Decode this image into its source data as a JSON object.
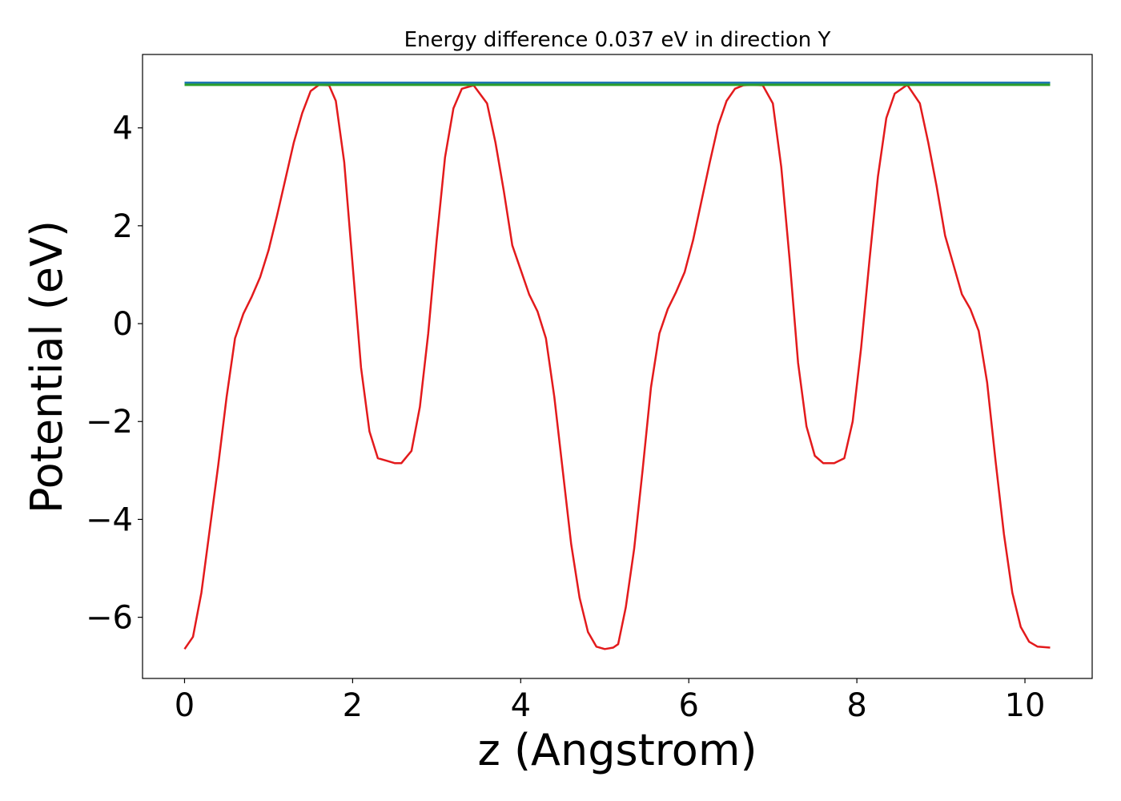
{
  "chart_data": {
    "type": "line",
    "title": "Energy difference 0.037 eV in direction Y",
    "xlabel": "z (Angstrom)",
    "ylabel": "Potential (eV)",
    "xlim": [
      -0.5,
      10.8
    ],
    "ylim": [
      -7.25,
      5.5
    ],
    "xticks": [
      0,
      2,
      4,
      6,
      8,
      10
    ],
    "xtick_labels": [
      "0",
      "2",
      "4",
      "6",
      "8",
      "10"
    ],
    "yticks": [
      4,
      2,
      0,
      -2,
      -4,
      -6
    ],
    "ytick_labels": [
      "4",
      "2",
      "0",
      "−2",
      "−4",
      "−6"
    ],
    "grid": false,
    "series": [
      {
        "color": "#e31a1c",
        "x": [
          0.0,
          0.1,
          0.2,
          0.3,
          0.4,
          0.5,
          0.6,
          0.7,
          0.8,
          0.9,
          1.0,
          1.1,
          1.2,
          1.3,
          1.4,
          1.5,
          1.6,
          1.72,
          1.8,
          1.9,
          2.0,
          2.1,
          2.2,
          2.3,
          2.4,
          2.5,
          2.58,
          2.7,
          2.8,
          2.9,
          3.0,
          3.1,
          3.2,
          3.3,
          3.44,
          3.6,
          3.7,
          3.8,
          3.9,
          4.0,
          4.1,
          4.2,
          4.3,
          4.4,
          4.5,
          4.6,
          4.7,
          4.8,
          4.9,
          5.0,
          5.1,
          5.16,
          5.25,
          5.35,
          5.45,
          5.55,
          5.65,
          5.75,
          5.85,
          5.95,
          6.05,
          6.15,
          6.25,
          6.35,
          6.45,
          6.55,
          6.65,
          6.75,
          6.88,
          7.0,
          7.1,
          7.2,
          7.3,
          7.4,
          7.5,
          7.6,
          7.73,
          7.85,
          7.95,
          8.05,
          8.15,
          8.25,
          8.35,
          8.45,
          8.6,
          8.75,
          8.85,
          8.95,
          9.05,
          9.15,
          9.25,
          9.35,
          9.45,
          9.55,
          9.65,
          9.75,
          9.85,
          9.95,
          10.05,
          10.15,
          10.3
        ],
        "y": [
          -6.65,
          -6.4,
          -5.5,
          -4.2,
          -2.9,
          -1.5,
          -0.3,
          0.2,
          0.55,
          0.95,
          1.5,
          2.2,
          2.95,
          3.7,
          4.3,
          4.75,
          4.88,
          4.87,
          4.55,
          3.3,
          1.2,
          -0.9,
          -2.2,
          -2.75,
          -2.8,
          -2.85,
          -2.85,
          -2.6,
          -1.7,
          -0.2,
          1.7,
          3.4,
          4.4,
          4.8,
          4.87,
          4.5,
          3.7,
          2.7,
          1.6,
          1.1,
          0.6,
          0.25,
          -0.3,
          -1.5,
          -3.0,
          -4.5,
          -5.6,
          -6.3,
          -6.6,
          -6.65,
          -6.62,
          -6.55,
          -5.8,
          -4.6,
          -3.0,
          -1.3,
          -0.2,
          0.3,
          0.65,
          1.05,
          1.7,
          2.5,
          3.3,
          4.05,
          4.55,
          4.8,
          4.87,
          4.88,
          4.87,
          4.5,
          3.2,
          1.3,
          -0.8,
          -2.1,
          -2.7,
          -2.85,
          -2.85,
          -2.75,
          -2.0,
          -0.5,
          1.3,
          3.0,
          4.2,
          4.7,
          4.88,
          4.5,
          3.7,
          2.8,
          1.8,
          1.2,
          0.6,
          0.3,
          -0.15,
          -1.2,
          -2.8,
          -4.3,
          -5.5,
          -6.2,
          -6.5,
          -6.6,
          -6.62
        ]
      },
      {
        "color": "#1f77b4",
        "x": [
          0.0,
          10.3
        ],
        "y": [
          4.92,
          4.92
        ]
      },
      {
        "color": "#2ca02c",
        "x": [
          0.0,
          10.3
        ],
        "y": [
          4.88,
          4.88
        ]
      }
    ]
  }
}
